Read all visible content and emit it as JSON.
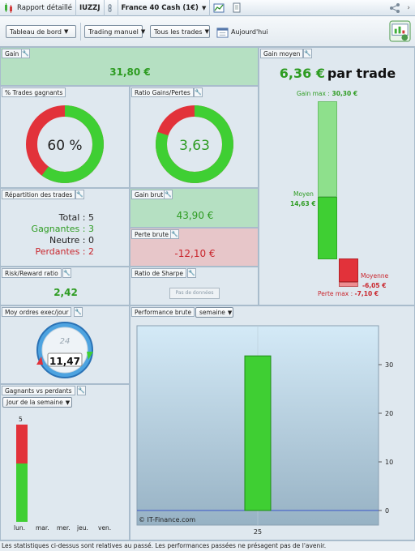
{
  "tabs": {
    "report": "Rapport détaillé",
    "account": "IUZZJ",
    "instrument": "France 40 Cash (1€)"
  },
  "toolbar": {
    "dashboard": "Tableau de bord",
    "trading_mode": "Trading manuel",
    "trades_filter": "Tous les trades",
    "date": "Aujourd'hui"
  },
  "gain": {
    "title": "Gain",
    "value": "31,80 €"
  },
  "win_rate": {
    "title": "% Trades gagnants",
    "value": "60 %",
    "fraction": 0.6
  },
  "ratio_gains": {
    "title": "Ratio Gains/Pertes",
    "value": "3,63",
    "fraction": 0.8
  },
  "gain_moyen": {
    "title": "Gain moyen",
    "value": "6,36 €",
    "suffix": "par trade",
    "gain_max_label": "Gain max :",
    "gain_max": "30,30 €",
    "moyen_label": "Moyen",
    "moyen": "14,63 €",
    "moyenne_label": "Moyenne",
    "moyenne": "-6,05 €",
    "perte_max_label": "Perte max :",
    "perte_max": "-7,10 €"
  },
  "repartition": {
    "title": "Répartition des trades",
    "total_label": "Total : 5",
    "gagnantes_label": "Gagnantes : 3",
    "neutre_label": "Neutre : 0",
    "perdantes_label": "Perdantes : 2"
  },
  "gain_brut": {
    "title": "Gain brut",
    "value": "43,90 €"
  },
  "perte_brute": {
    "title": "Perte brute",
    "value": "-12,10 €"
  },
  "risk_reward": {
    "title": "Risk/Reward ratio",
    "value": "2,42"
  },
  "sharpe": {
    "title": "Ratio de Sharpe",
    "button": "Pas de données"
  },
  "ordres": {
    "title": "Moy ordres exec/jour",
    "clock_number": "24",
    "value": "11,47"
  },
  "gvp": {
    "title": "Gagnants vs perdants",
    "period": "Jour de la semaine",
    "top_value": "5",
    "days": [
      "lun.",
      "mar.",
      "mer.",
      "jeu.",
      "ven."
    ]
  },
  "performance": {
    "title": "Performance brute",
    "period": "semaine",
    "watermark": "© IT-Finance.com"
  },
  "chart_data": {
    "type": "bar",
    "categories": [
      "25"
    ],
    "values": [
      31.8
    ],
    "ylim": [
      -3,
      38
    ],
    "yticks": [
      0,
      10,
      20,
      30
    ]
  },
  "colors": {
    "green": "#3fcf33",
    "red": "#e2323a",
    "panel_green": "#b5e0c2",
    "panel_red": "#e7c6c9"
  },
  "footer": "Les statistiques ci-dessus sont relatives au passé. Les performances passées ne présagent pas de l'avenir."
}
